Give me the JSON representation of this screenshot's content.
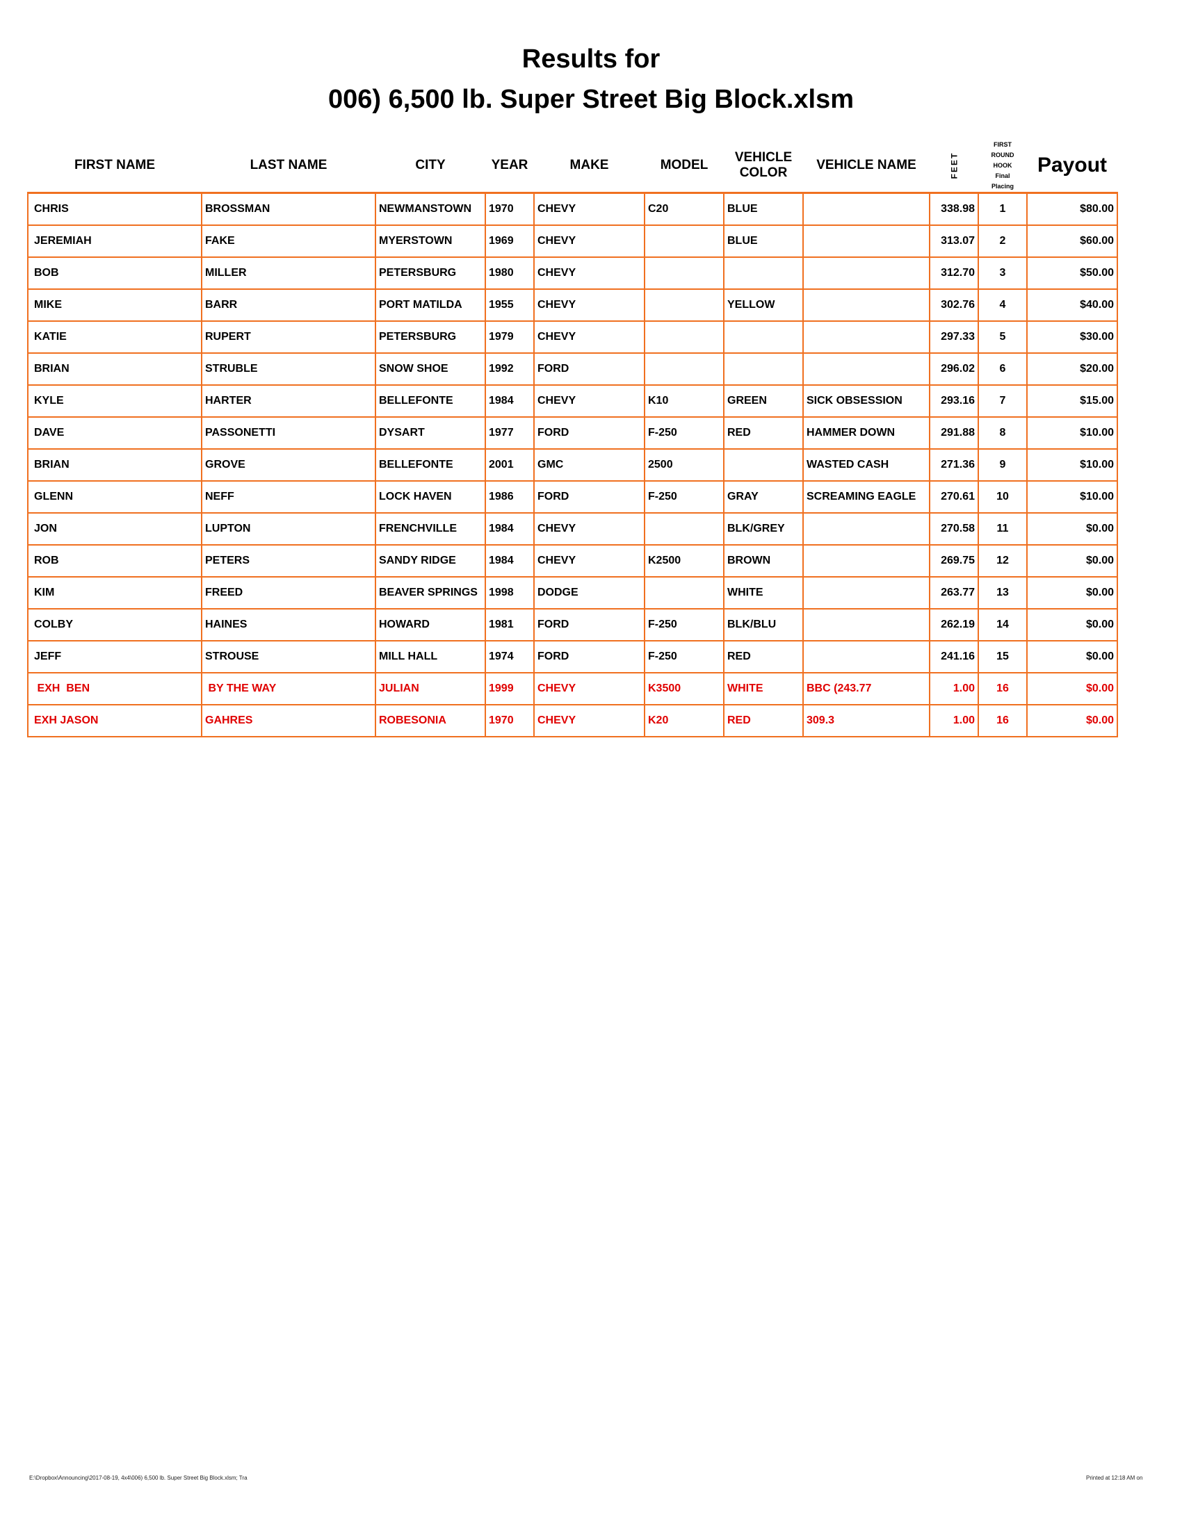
{
  "title_line1": "Results for",
  "title_line2": "006) 6,500 lb. Super Street Big Block.xlsm",
  "headers": {
    "first": "FIRST NAME",
    "last": "LAST NAME",
    "city": "CITY",
    "year": "YEAR",
    "make": "MAKE",
    "model": "MODEL",
    "color1": "VEHICLE",
    "color2": "COLOR",
    "vname": "VEHICLE NAME",
    "feet": "FEET",
    "placing": [
      "FIRST",
      "ROUND",
      "HOOK",
      "Final",
      "Placing"
    ],
    "payout": "Payout"
  },
  "rows": [
    [
      "CHRIS",
      "BROSSMAN",
      "NEWMANSTOWN",
      "1970",
      "CHEVY",
      "C20",
      "BLUE",
      "",
      "338.98",
      "1",
      "$80.00"
    ],
    [
      "JEREMIAH",
      "FAKE",
      "MYERSTOWN",
      "1969",
      "CHEVY",
      "",
      "BLUE",
      "",
      "313.07",
      "2",
      "$60.00"
    ],
    [
      "BOB",
      "MILLER",
      "PETERSBURG",
      "1980",
      "CHEVY",
      "",
      "",
      "",
      "312.70",
      "3",
      "$50.00"
    ],
    [
      "MIKE",
      "BARR",
      "PORT MATILDA",
      "1955",
      "CHEVY",
      "",
      "YELLOW",
      "",
      "302.76",
      "4",
      "$40.00"
    ],
    [
      "KATIE",
      "RUPERT",
      "PETERSBURG",
      "1979",
      "CHEVY",
      "",
      "",
      "",
      "297.33",
      "5",
      "$30.00"
    ],
    [
      "BRIAN",
      "STRUBLE",
      "SNOW SHOE",
      "1992",
      "FORD",
      "",
      "",
      "",
      "296.02",
      "6",
      "$20.00"
    ],
    [
      "KYLE",
      "HARTER",
      "BELLEFONTE",
      "1984",
      "CHEVY",
      "K10",
      "GREEN",
      "SICK OBSESSION",
      "293.16",
      "7",
      "$15.00"
    ],
    [
      "DAVE",
      "PASSONETTI",
      "DYSART",
      "1977",
      "FORD",
      "F-250",
      "RED",
      "HAMMER DOWN",
      "291.88",
      "8",
      "$10.00"
    ],
    [
      "BRIAN",
      "GROVE",
      "BELLEFONTE",
      "2001",
      "GMC",
      "2500",
      "",
      "WASTED CASH",
      "271.36",
      "9",
      "$10.00"
    ],
    [
      "GLENN",
      "NEFF",
      "LOCK HAVEN",
      "1986",
      "FORD",
      "F-250",
      "GRAY",
      "SCREAMING EAGLE",
      "270.61",
      "10",
      "$10.00"
    ],
    [
      "JON",
      "LUPTON",
      "FRENCHVILLE",
      "1984",
      "CHEVY",
      "",
      "BLK/GREY",
      "",
      "270.58",
      "11",
      "$0.00"
    ],
    [
      "ROB",
      "PETERS",
      "SANDY RIDGE",
      "1984",
      "CHEVY",
      "K2500",
      "BROWN",
      "",
      "269.75",
      "12",
      "$0.00"
    ],
    [
      "KIM",
      "FREED",
      "BEAVER SPRINGS",
      "1998",
      "DODGE",
      "",
      "WHITE",
      "",
      "263.77",
      "13",
      "$0.00"
    ],
    [
      "COLBY",
      "HAINES",
      "HOWARD",
      "1981",
      "FORD",
      "F-250",
      "BLK/BLU",
      "",
      "262.19",
      "14",
      "$0.00"
    ],
    [
      "JEFF",
      "STROUSE",
      "MILL HALL",
      "1974",
      "FORD",
      "F-250",
      "RED",
      "",
      "241.16",
      "15",
      "$0.00"
    ],
    [
      " EXH  BEN",
      " BY THE WAY",
      "JULIAN",
      "1999",
      "CHEVY",
      "K3500",
      "WHITE",
      "BBC (243.77",
      "1.00",
      "16",
      "$0.00"
    ],
    [
      "EXH JASON",
      "GAHRES",
      "ROBESONIA",
      "1970",
      "CHEVY",
      "K20",
      "RED",
      "309.3",
      "1.00",
      "16",
      "$0.00"
    ]
  ],
  "exhibition_rows": [
    15,
    16
  ],
  "colors": {
    "grid": "#f07020",
    "exhibition": "#e00000"
  },
  "footer_left": "E:\\Dropbox\\Announcing\\2017-08-19, 4x4\\006) 6,500 lb. Super Street Big Block.xlsm; Tra",
  "footer_right": "Printed at 12:18 AM on"
}
